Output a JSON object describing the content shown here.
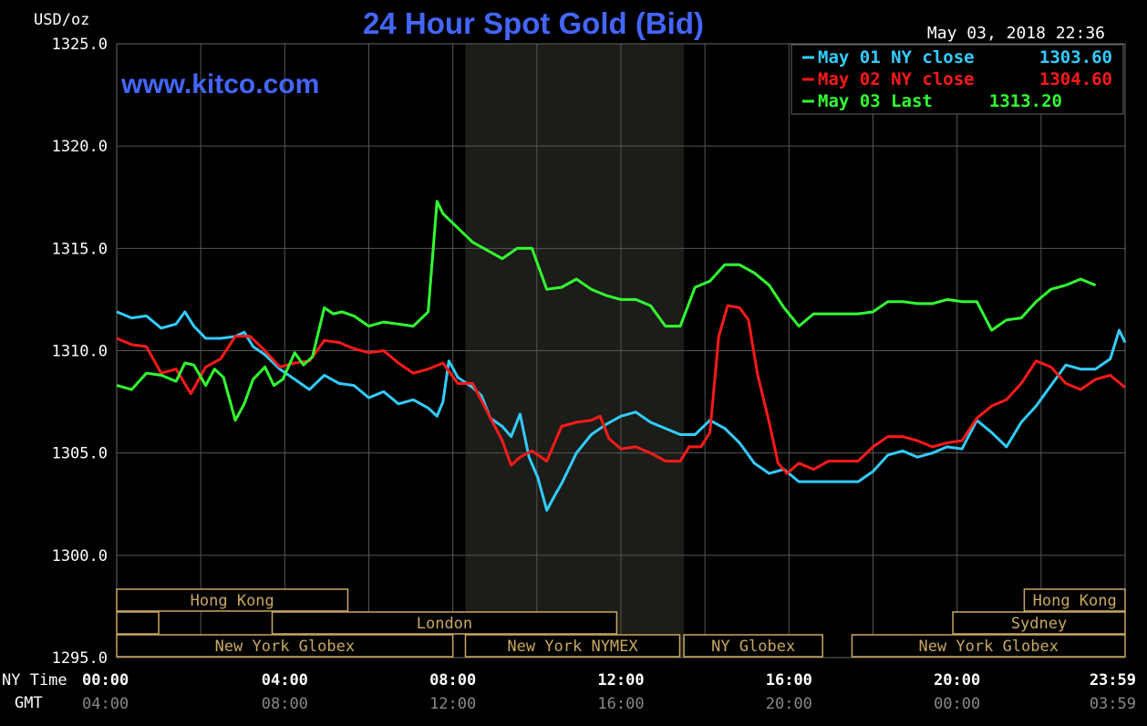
{
  "chart_data": {
    "type": "line",
    "title": "24 Hour Spot Gold (Bid)",
    "ylabel": "USD/oz",
    "watermark": "www.kitco.com",
    "timestamp": "May 03, 2018 22:36",
    "ylim": [
      1295.0,
      1325.0
    ],
    "y_ticks": [
      "1325.0",
      "1320.0",
      "1315.0",
      "1310.0",
      "1305.0",
      "1300.0",
      "1295.0"
    ],
    "x_range_hours": [
      0,
      24
    ],
    "x_ticks_ny": [
      "00:00",
      "04:00",
      "08:00",
      "12:00",
      "16:00",
      "20:00",
      "23:59"
    ],
    "x_ticks_gmt": [
      "04:00",
      "08:00",
      "12:00",
      "16:00",
      "20:00",
      "00:00",
      "03:59"
    ],
    "x_row_label_ny": "NY Time",
    "x_row_label_gmt": "GMT",
    "grid": true,
    "legend_position": "top-right",
    "colors": {
      "may01": "#33ccff",
      "may02": "#ff1a1a",
      "may03": "#33ff33",
      "title": "#4466ff",
      "grid": "#555555",
      "session": "#c8a860"
    },
    "highlight_band_hours": [
      8.3,
      13.5
    ],
    "series": [
      {
        "name": "May 01 NY close",
        "legend_value": "1303.60",
        "color": "#33ccff",
        "points": [
          [
            0,
            1311.9
          ],
          [
            0.5,
            1311.6
          ],
          [
            1,
            1311.7
          ],
          [
            1.5,
            1311.1
          ],
          [
            2,
            1311.3
          ],
          [
            2.3,
            1311.9
          ],
          [
            2.6,
            1311.2
          ],
          [
            3,
            1310.6
          ],
          [
            3.5,
            1310.6
          ],
          [
            4,
            1310.7
          ],
          [
            4.3,
            1310.9
          ],
          [
            4.6,
            1310.2
          ],
          [
            5,
            1309.8
          ],
          [
            5.5,
            1309.1
          ],
          [
            6,
            1308.6
          ],
          [
            6.5,
            1308.1
          ],
          [
            7,
            1308.8
          ],
          [
            7.5,
            1308.4
          ],
          [
            8,
            1308.3
          ],
          [
            8.5,
            1307.7
          ],
          [
            9,
            1308.0
          ],
          [
            9.5,
            1307.4
          ],
          [
            10,
            1307.6
          ],
          [
            10.5,
            1307.2
          ],
          [
            10.8,
            1306.8
          ],
          [
            11,
            1307.5
          ],
          [
            11.2,
            1309.5
          ],
          [
            11.5,
            1308.7
          ],
          [
            12,
            1308.2
          ],
          [
            12.3,
            1307.8
          ],
          [
            12.6,
            1306.7
          ],
          [
            13,
            1306.3
          ],
          [
            13.3,
            1305.8
          ],
          [
            13.6,
            1306.9
          ],
          [
            13.9,
            1304.8
          ],
          [
            14.2,
            1303.8
          ],
          [
            14.5,
            1302.2
          ],
          [
            14.8,
            1303.0
          ],
          [
            15,
            1303.5
          ],
          [
            15.5,
            1305.0
          ],
          [
            16,
            1305.9
          ],
          [
            16.5,
            1306.4
          ],
          [
            17,
            1306.8
          ],
          [
            17.5,
            1307.0
          ],
          [
            18,
            1306.5
          ],
          [
            18.5,
            1306.2
          ],
          [
            19,
            1305.9
          ],
          [
            19.5,
            1305.9
          ],
          [
            20,
            1306.6
          ],
          [
            20.5,
            1306.2
          ],
          [
            21,
            1305.5
          ],
          [
            21.5,
            1304.5
          ],
          [
            22,
            1304.0
          ],
          [
            22.5,
            1304.2
          ],
          [
            23,
            1303.6
          ],
          [
            23.5,
            1303.6
          ],
          [
            24,
            1303.6
          ],
          [
            24.5,
            1303.6
          ],
          [
            25,
            1303.6
          ],
          [
            25.5,
            1304.1
          ],
          [
            26,
            1304.9
          ],
          [
            26.5,
            1305.1
          ],
          [
            27,
            1304.8
          ],
          [
            27.5,
            1305.0
          ],
          [
            28,
            1305.3
          ],
          [
            28.5,
            1305.2
          ],
          [
            29,
            1306.6
          ],
          [
            29.5,
            1306.0
          ],
          [
            30,
            1305.3
          ],
          [
            30.5,
            1306.5
          ],
          [
            31,
            1307.3
          ],
          [
            31.5,
            1308.3
          ],
          [
            32,
            1309.3
          ],
          [
            32.5,
            1309.1
          ],
          [
            33,
            1309.1
          ],
          [
            33.5,
            1309.6
          ],
          [
            33.8,
            1311.0
          ],
          [
            34,
            1310.4
          ]
        ]
      },
      {
        "name": "May 02 NY close",
        "legend_value": "1304.60",
        "color": "#ff1a1a",
        "points": [
          [
            0,
            1310.6
          ],
          [
            0.5,
            1310.3
          ],
          [
            1,
            1310.2
          ],
          [
            1.5,
            1308.9
          ],
          [
            2,
            1309.1
          ],
          [
            2.5,
            1307.9
          ],
          [
            3,
            1309.2
          ],
          [
            3.5,
            1309.6
          ],
          [
            4,
            1310.7
          ],
          [
            4.5,
            1310.7
          ],
          [
            5,
            1310.0
          ],
          [
            5.5,
            1309.2
          ],
          [
            6,
            1309.4
          ],
          [
            6.5,
            1309.5
          ],
          [
            7,
            1310.5
          ],
          [
            7.5,
            1310.4
          ],
          [
            8,
            1310.1
          ],
          [
            8.5,
            1309.9
          ],
          [
            9,
            1310.0
          ],
          [
            9.5,
            1309.4
          ],
          [
            10,
            1308.9
          ],
          [
            10.5,
            1309.1
          ],
          [
            11,
            1309.4
          ],
          [
            11.5,
            1308.4
          ],
          [
            12,
            1308.4
          ],
          [
            12.5,
            1307.0
          ],
          [
            13,
            1305.6
          ],
          [
            13.3,
            1304.4
          ],
          [
            13.6,
            1304.8
          ],
          [
            14,
            1305.1
          ],
          [
            14.5,
            1304.6
          ],
          [
            15,
            1306.3
          ],
          [
            15.5,
            1306.5
          ],
          [
            16,
            1306.6
          ],
          [
            16.3,
            1306.8
          ],
          [
            16.6,
            1305.7
          ],
          [
            17,
            1305.2
          ],
          [
            17.5,
            1305.3
          ],
          [
            18,
            1305.0
          ],
          [
            18.5,
            1304.6
          ],
          [
            19,
            1304.6
          ],
          [
            19.3,
            1305.3
          ],
          [
            19.7,
            1305.3
          ],
          [
            20,
            1306.0
          ],
          [
            20.3,
            1310.7
          ],
          [
            20.6,
            1312.2
          ],
          [
            21,
            1312.1
          ],
          [
            21.3,
            1311.5
          ],
          [
            21.6,
            1308.9
          ],
          [
            22,
            1306.5
          ],
          [
            22.3,
            1304.5
          ],
          [
            22.6,
            1304.0
          ],
          [
            23,
            1304.5
          ],
          [
            23.5,
            1304.2
          ],
          [
            24,
            1304.6
          ],
          [
            24.5,
            1304.6
          ],
          [
            25,
            1304.6
          ],
          [
            25.5,
            1305.3
          ],
          [
            26,
            1305.8
          ],
          [
            26.5,
            1305.8
          ],
          [
            27,
            1305.6
          ],
          [
            27.5,
            1305.3
          ],
          [
            28,
            1305.5
          ],
          [
            28.5,
            1305.6
          ],
          [
            29,
            1306.7
          ],
          [
            29.5,
            1307.3
          ],
          [
            30,
            1307.6
          ],
          [
            30.5,
            1308.4
          ],
          [
            31,
            1309.5
          ],
          [
            31.5,
            1309.2
          ],
          [
            32,
            1308.4
          ],
          [
            32.5,
            1308.1
          ],
          [
            33,
            1308.6
          ],
          [
            33.5,
            1308.8
          ],
          [
            34,
            1308.2
          ]
        ]
      },
      {
        "name": "May 03 Last",
        "legend_value": "1313.20",
        "color": "#33ff33",
        "points": [
          [
            0,
            1308.3
          ],
          [
            0.5,
            1308.1
          ],
          [
            1,
            1308.9
          ],
          [
            1.5,
            1308.8
          ],
          [
            2,
            1308.5
          ],
          [
            2.3,
            1309.4
          ],
          [
            2.6,
            1309.3
          ],
          [
            3,
            1308.3
          ],
          [
            3.3,
            1309.1
          ],
          [
            3.6,
            1308.7
          ],
          [
            4,
            1306.6
          ],
          [
            4.3,
            1307.4
          ],
          [
            4.6,
            1308.6
          ],
          [
            5,
            1309.2
          ],
          [
            5.3,
            1308.3
          ],
          [
            5.6,
            1308.6
          ],
          [
            6,
            1309.9
          ],
          [
            6.3,
            1309.3
          ],
          [
            6.6,
            1309.7
          ],
          [
            7,
            1312.1
          ],
          [
            7.3,
            1311.8
          ],
          [
            7.6,
            1311.9
          ],
          [
            8,
            1311.7
          ],
          [
            8.5,
            1311.2
          ],
          [
            9,
            1311.4
          ],
          [
            9.5,
            1311.3
          ],
          [
            10,
            1311.2
          ],
          [
            10.5,
            1311.9
          ],
          [
            10.8,
            1317.3
          ],
          [
            11,
            1316.7
          ],
          [
            11.5,
            1316.0
          ],
          [
            12,
            1315.3
          ],
          [
            12.5,
            1314.9
          ],
          [
            13,
            1314.5
          ],
          [
            13.5,
            1315.0
          ],
          [
            14,
            1315.0
          ],
          [
            14.5,
            1313.0
          ],
          [
            15,
            1313.1
          ],
          [
            15.5,
            1313.5
          ],
          [
            16,
            1313.0
          ],
          [
            16.5,
            1312.7
          ],
          [
            17,
            1312.5
          ],
          [
            17.5,
            1312.5
          ],
          [
            18,
            1312.2
          ],
          [
            18.5,
            1311.2
          ],
          [
            19,
            1311.2
          ],
          [
            19.5,
            1313.1
          ],
          [
            20,
            1313.4
          ],
          [
            20.5,
            1314.2
          ],
          [
            21,
            1314.2
          ],
          [
            21.5,
            1313.8
          ],
          [
            22,
            1313.2
          ],
          [
            22.5,
            1312.1
          ],
          [
            23,
            1311.2
          ],
          [
            23.5,
            1311.8
          ],
          [
            24,
            1311.8
          ],
          [
            24.5,
            1311.8
          ],
          [
            25,
            1311.8
          ],
          [
            25.5,
            1311.9
          ],
          [
            26,
            1312.4
          ],
          [
            26.5,
            1312.4
          ],
          [
            27,
            1312.3
          ],
          [
            27.5,
            1312.3
          ],
          [
            28,
            1312.5
          ],
          [
            28.5,
            1312.4
          ],
          [
            29,
            1312.4
          ],
          [
            29.5,
            1311.0
          ],
          [
            30,
            1311.5
          ],
          [
            30.5,
            1311.6
          ],
          [
            31,
            1312.4
          ],
          [
            31.5,
            1313.0
          ],
          [
            32,
            1313.2
          ],
          [
            32.5,
            1313.5
          ],
          [
            33,
            1313.2
          ]
        ]
      }
    ],
    "sessions": [
      {
        "label": "Hong Kong",
        "row": 0,
        "start": 0.0,
        "end": 5.5
      },
      {
        "label": "",
        "row": 1,
        "start": 0.0,
        "end": 1.0
      },
      {
        "label": "London",
        "row": 1,
        "start": 3.7,
        "end": 11.9
      },
      {
        "label": "New York Globex",
        "row": 2,
        "start": 0.0,
        "end": 8.0
      },
      {
        "label": "New York NYMEX",
        "row": 2,
        "start": 8.3,
        "end": 13.4
      },
      {
        "label": "NY Globex",
        "row": 2,
        "start": 13.5,
        "end": 16.8
      },
      {
        "label": "Hong Kong",
        "row": 0,
        "start": 21.6,
        "end": 24.0
      },
      {
        "label": "Sydney",
        "row": 1,
        "start": 19.9,
        "end": 24.0
      },
      {
        "label": "New York Globex",
        "row": 2,
        "start": 17.5,
        "end": 24.0
      }
    ]
  }
}
